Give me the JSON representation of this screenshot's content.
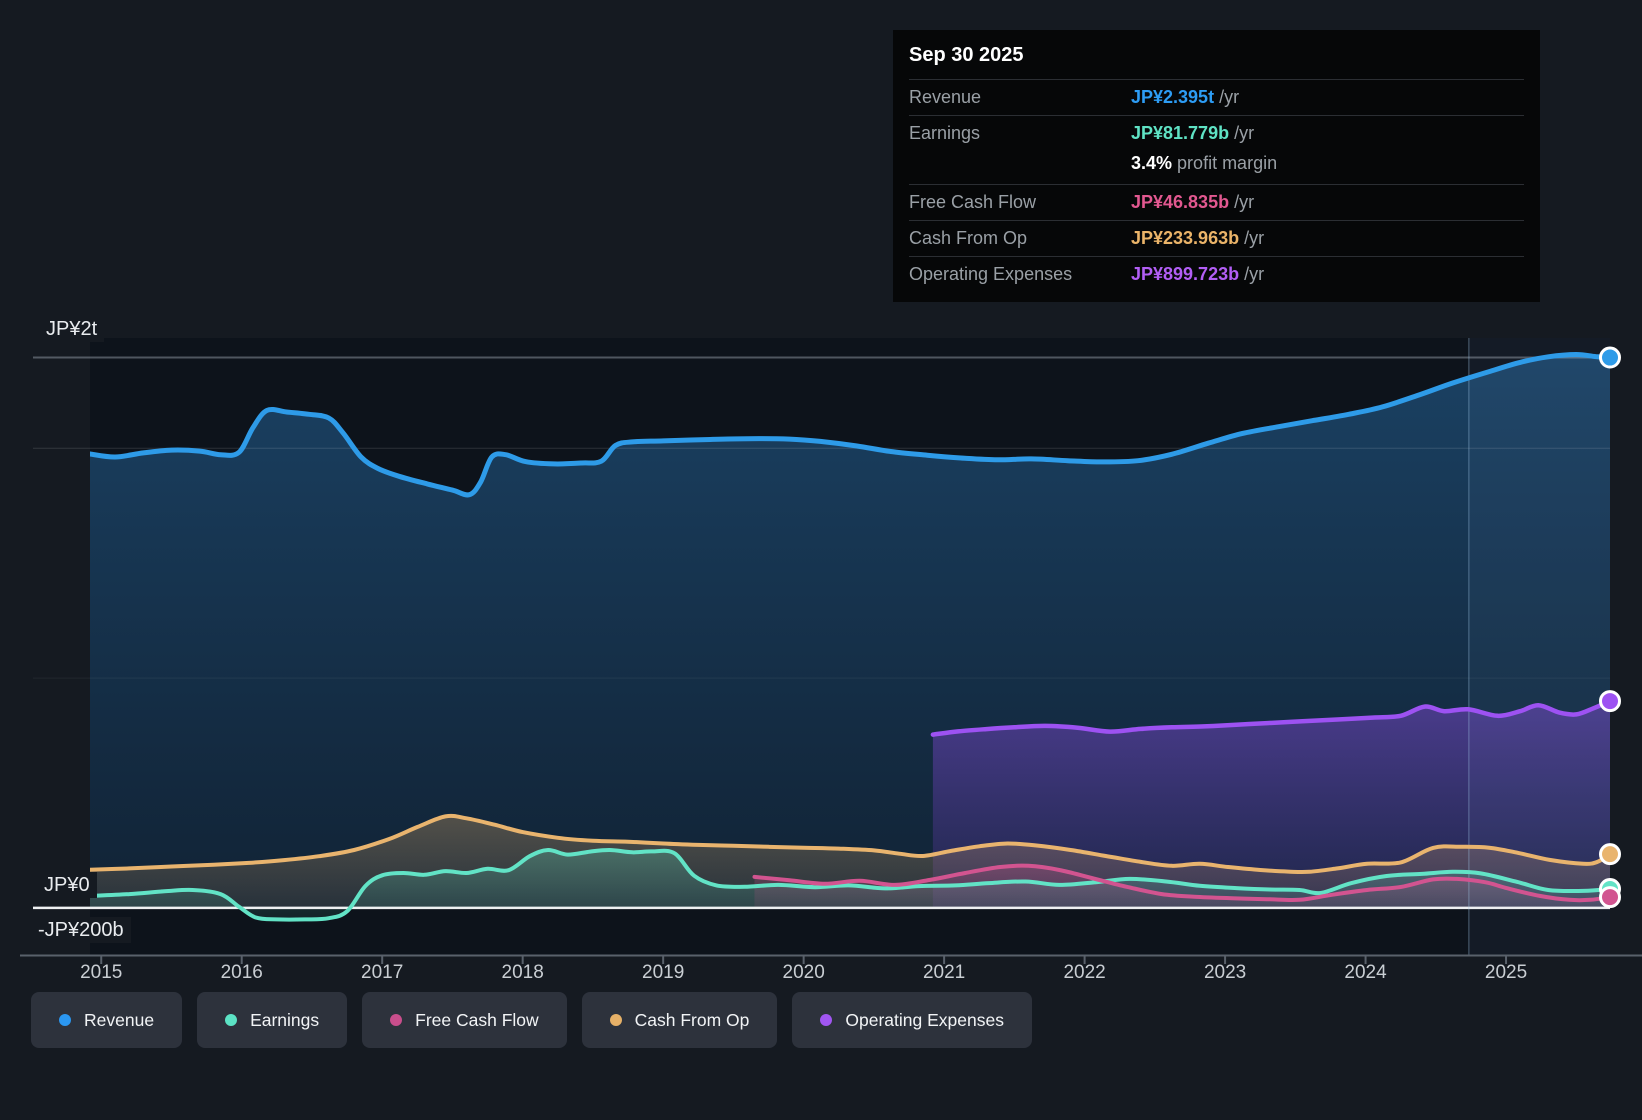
{
  "tooltip": {
    "date": "Sep 30 2025",
    "rows": [
      {
        "label": "Revenue",
        "value": "JP¥2.395t",
        "suffix": "/yr",
        "color": "#2d9cf4"
      },
      {
        "label": "Earnings",
        "value": "JP¥81.779b",
        "suffix": "/yr",
        "color": "#5fe2c4"
      },
      {
        "label": "Free Cash Flow",
        "value": "JP¥46.835b",
        "suffix": "/yr",
        "color": "#e25890"
      },
      {
        "label": "Cash From Op",
        "value": "JP¥233.963b",
        "suffix": "/yr",
        "color": "#ebb469"
      },
      {
        "label": "Operating Expenses",
        "value": "JP¥899.723b",
        "suffix": "/yr",
        "color": "#b25ef5"
      }
    ],
    "profit_margin": {
      "value": "3.4%",
      "text": "profit margin"
    }
  },
  "legend": {
    "items": [
      {
        "label": "Revenue",
        "color": "#2b97f1"
      },
      {
        "label": "Earnings",
        "color": "#5ce3c5"
      },
      {
        "label": "Free Cash Flow",
        "color": "#c94e8c"
      },
      {
        "label": "Cash From Op",
        "color": "#e6b168"
      },
      {
        "label": "Operating Expenses",
        "color": "#a156f2"
      }
    ]
  },
  "chart_data": {
    "type": "area",
    "unit": "JP¥ billions",
    "x_range": [
      2014.92,
      2025.74
    ],
    "y_range_b": [
      -205,
      2480
    ],
    "x_ticks": [
      "2015",
      "2016",
      "2017",
      "2018",
      "2019",
      "2020",
      "2021",
      "2022",
      "2023",
      "2024",
      "2025"
    ],
    "y_ticks": [
      {
        "value_b": 2000,
        "label": "JP¥2t"
      },
      {
        "value_b": 0,
        "label": "JP¥0"
      },
      {
        "value_b": -200,
        "label": "-JP¥200b"
      }
    ],
    "gridlines_b": [
      2000,
      1000
    ],
    "hover": {
      "date": "Sep 30 2025",
      "band_start_year": 2024.735,
      "crosshair_value_b": 2395
    },
    "series": [
      {
        "name": "Revenue",
        "color": "#2e9be8",
        "width": 5,
        "fill_top": "rgba(45,130,200,0.42)",
        "fill_bottom": "rgba(35,100,160,0.20)",
        "points": [
          [
            2014.92,
            1975
          ],
          [
            2015.1,
            1962
          ],
          [
            2015.3,
            1980
          ],
          [
            2015.5,
            1992
          ],
          [
            2015.7,
            1988
          ],
          [
            2015.85,
            1972
          ],
          [
            2015.98,
            1982
          ],
          [
            2016.08,
            2090
          ],
          [
            2016.18,
            2165
          ],
          [
            2016.32,
            2158
          ],
          [
            2016.48,
            2148
          ],
          [
            2016.62,
            2132
          ],
          [
            2016.72,
            2068
          ],
          [
            2016.85,
            1962
          ],
          [
            2016.97,
            1912
          ],
          [
            2017.12,
            1878
          ],
          [
            2017.32,
            1845
          ],
          [
            2017.5,
            1818
          ],
          [
            2017.62,
            1798
          ],
          [
            2017.7,
            1852
          ],
          [
            2017.78,
            1962
          ],
          [
            2017.88,
            1972
          ],
          [
            2018.02,
            1942
          ],
          [
            2018.22,
            1932
          ],
          [
            2018.42,
            1936
          ],
          [
            2018.56,
            1944
          ],
          [
            2018.66,
            2012
          ],
          [
            2018.78,
            2028
          ],
          [
            2019.0,
            2032
          ],
          [
            2019.3,
            2038
          ],
          [
            2019.6,
            2042
          ],
          [
            2019.9,
            2040
          ],
          [
            2020.12,
            2030
          ],
          [
            2020.38,
            2010
          ],
          [
            2020.62,
            1986
          ],
          [
            2020.88,
            1970
          ],
          [
            2021.12,
            1958
          ],
          [
            2021.38,
            1950
          ],
          [
            2021.62,
            1954
          ],
          [
            2021.88,
            1946
          ],
          [
            2022.12,
            1941
          ],
          [
            2022.38,
            1946
          ],
          [
            2022.62,
            1974
          ],
          [
            2022.88,
            2022
          ],
          [
            2023.12,
            2064
          ],
          [
            2023.38,
            2094
          ],
          [
            2023.62,
            2120
          ],
          [
            2023.88,
            2148
          ],
          [
            2024.12,
            2180
          ],
          [
            2024.38,
            2232
          ],
          [
            2024.62,
            2284
          ],
          [
            2024.88,
            2334
          ],
          [
            2025.1,
            2374
          ],
          [
            2025.3,
            2398
          ],
          [
            2025.5,
            2408
          ],
          [
            2025.65,
            2398
          ],
          [
            2025.74,
            2395
          ]
        ]
      },
      {
        "name": "Operating Expenses",
        "color": "#9d52f2",
        "width": 4.5,
        "fill_top": "rgba(150,80,240,0.42)",
        "fill_bottom": "rgba(110,60,190,0.16)",
        "points": [
          [
            2020.92,
            754
          ],
          [
            2021.1,
            768
          ],
          [
            2021.3,
            778
          ],
          [
            2021.5,
            786
          ],
          [
            2021.72,
            792
          ],
          [
            2021.95,
            784
          ],
          [
            2022.18,
            767
          ],
          [
            2022.4,
            779
          ],
          [
            2022.62,
            786
          ],
          [
            2022.85,
            790
          ],
          [
            2023.08,
            797
          ],
          [
            2023.3,
            804
          ],
          [
            2023.55,
            812
          ],
          [
            2023.8,
            820
          ],
          [
            2024.05,
            828
          ],
          [
            2024.25,
            836
          ],
          [
            2024.42,
            876
          ],
          [
            2024.56,
            856
          ],
          [
            2024.73,
            864
          ],
          [
            2024.94,
            836
          ],
          [
            2025.1,
            856
          ],
          [
            2025.23,
            882
          ],
          [
            2025.38,
            850
          ],
          [
            2025.5,
            842
          ],
          [
            2025.62,
            868
          ],
          [
            2025.74,
            900
          ]
        ]
      },
      {
        "name": "Cash From Op",
        "color": "#e9b46e",
        "width": 4,
        "fill_top": "rgba(230,175,105,0.30)",
        "fill_bottom": "rgba(230,175,105,0.10)",
        "points": [
          [
            2014.92,
            166
          ],
          [
            2015.2,
            172
          ],
          [
            2015.5,
            180
          ],
          [
            2015.8,
            188
          ],
          [
            2016.05,
            196
          ],
          [
            2016.3,
            208
          ],
          [
            2016.55,
            225
          ],
          [
            2016.8,
            252
          ],
          [
            2017.05,
            300
          ],
          [
            2017.25,
            352
          ],
          [
            2017.45,
            398
          ],
          [
            2017.6,
            390
          ],
          [
            2017.8,
            362
          ],
          [
            2018.0,
            330
          ],
          [
            2018.25,
            305
          ],
          [
            2018.5,
            292
          ],
          [
            2018.75,
            288
          ],
          [
            2019.0,
            280
          ],
          [
            2019.25,
            274
          ],
          [
            2019.5,
            270
          ],
          [
            2019.75,
            266
          ],
          [
            2020.0,
            262
          ],
          [
            2020.25,
            258
          ],
          [
            2020.5,
            250
          ],
          [
            2020.68,
            236
          ],
          [
            2020.85,
            226
          ],
          [
            2021.05,
            248
          ],
          [
            2021.25,
            268
          ],
          [
            2021.45,
            280
          ],
          [
            2021.65,
            272
          ],
          [
            2021.9,
            252
          ],
          [
            2022.15,
            226
          ],
          [
            2022.4,
            200
          ],
          [
            2022.62,
            183
          ],
          [
            2022.82,
            192
          ],
          [
            2023.02,
            178
          ],
          [
            2023.25,
            165
          ],
          [
            2023.45,
            158
          ],
          [
            2023.6,
            157
          ],
          [
            2023.8,
            172
          ],
          [
            2024.01,
            192
          ],
          [
            2024.25,
            198
          ],
          [
            2024.48,
            261
          ],
          [
            2024.68,
            266
          ],
          [
            2024.88,
            262
          ],
          [
            2025.08,
            240
          ],
          [
            2025.31,
            209
          ],
          [
            2025.55,
            192
          ],
          [
            2025.65,
            200
          ],
          [
            2025.74,
            234
          ]
        ]
      },
      {
        "name": "Earnings",
        "color": "#62e3c6",
        "width": 4,
        "fill_top": "rgba(90,225,195,0.26)",
        "fill_bottom": "rgba(90,225,195,0.08)",
        "points": [
          [
            2014.92,
            52
          ],
          [
            2015.2,
            60
          ],
          [
            2015.45,
            72
          ],
          [
            2015.65,
            78
          ],
          [
            2015.85,
            60
          ],
          [
            2015.98,
            5
          ],
          [
            2016.1,
            -42
          ],
          [
            2016.25,
            -50
          ],
          [
            2016.45,
            -50
          ],
          [
            2016.62,
            -45
          ],
          [
            2016.75,
            -15
          ],
          [
            2016.88,
            95
          ],
          [
            2017.0,
            142
          ],
          [
            2017.15,
            152
          ],
          [
            2017.3,
            144
          ],
          [
            2017.45,
            160
          ],
          [
            2017.6,
            152
          ],
          [
            2017.75,
            170
          ],
          [
            2017.9,
            164
          ],
          [
            2018.05,
            225
          ],
          [
            2018.18,
            252
          ],
          [
            2018.32,
            232
          ],
          [
            2018.48,
            245
          ],
          [
            2018.62,
            252
          ],
          [
            2018.78,
            242
          ],
          [
            2018.92,
            246
          ],
          [
            2019.08,
            238
          ],
          [
            2019.22,
            140
          ],
          [
            2019.38,
            98
          ],
          [
            2019.58,
            92
          ],
          [
            2019.82,
            100
          ],
          [
            2020.08,
            90
          ],
          [
            2020.32,
            98
          ],
          [
            2020.58,
            85
          ],
          [
            2020.82,
            95
          ],
          [
            2021.08,
            98
          ],
          [
            2021.32,
            108
          ],
          [
            2021.58,
            115
          ],
          [
            2021.82,
            100
          ],
          [
            2022.08,
            112
          ],
          [
            2022.32,
            126
          ],
          [
            2022.58,
            115
          ],
          [
            2022.82,
            96
          ],
          [
            2023.08,
            86
          ],
          [
            2023.32,
            80
          ],
          [
            2023.53,
            78
          ],
          [
            2023.68,
            65
          ],
          [
            2023.9,
            108
          ],
          [
            2024.15,
            139
          ],
          [
            2024.4,
            148
          ],
          [
            2024.62,
            157
          ],
          [
            2024.82,
            150
          ],
          [
            2025.08,
            113
          ],
          [
            2025.3,
            78
          ],
          [
            2025.55,
            74
          ],
          [
            2025.74,
            82
          ]
        ]
      },
      {
        "name": "Free Cash Flow",
        "color": "#d25490",
        "width": 4,
        "fill_top": "rgba(205,80,140,0.28)",
        "fill_bottom": "rgba(205,80,140,0.10)",
        "points": [
          [
            2019.65,
            135
          ],
          [
            2019.9,
            120
          ],
          [
            2020.15,
            105
          ],
          [
            2020.4,
            118
          ],
          [
            2020.65,
            100
          ],
          [
            2020.9,
            122
          ],
          [
            2021.15,
            152
          ],
          [
            2021.4,
            178
          ],
          [
            2021.6,
            183
          ],
          [
            2021.82,
            165
          ],
          [
            2022.05,
            130
          ],
          [
            2022.3,
            92
          ],
          [
            2022.55,
            60
          ],
          [
            2022.8,
            48
          ],
          [
            2023.05,
            42
          ],
          [
            2023.3,
            38
          ],
          [
            2023.53,
            35
          ],
          [
            2023.76,
            57
          ],
          [
            2024.01,
            78
          ],
          [
            2024.25,
            91
          ],
          [
            2024.48,
            124
          ],
          [
            2024.65,
            126
          ],
          [
            2024.85,
            112
          ],
          [
            2025.0,
            87
          ],
          [
            2025.24,
            52
          ],
          [
            2025.45,
            35
          ],
          [
            2025.6,
            35
          ],
          [
            2025.74,
            47
          ]
        ]
      }
    ]
  }
}
